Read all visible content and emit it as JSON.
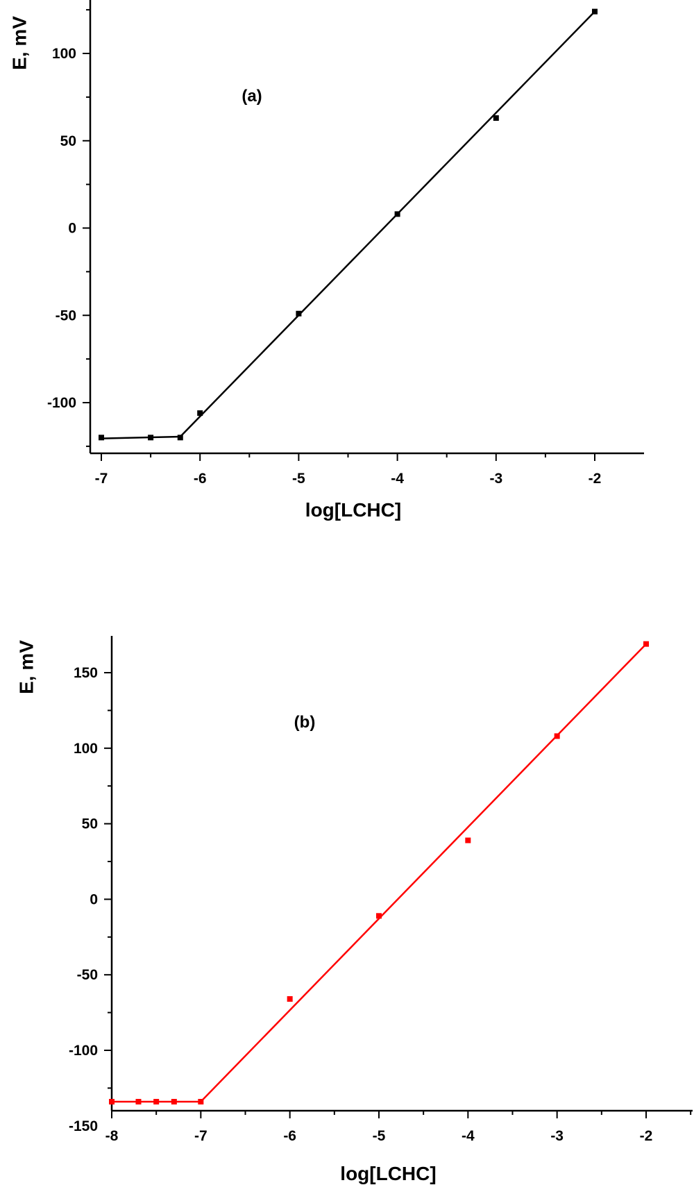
{
  "chart_data": [
    {
      "type": "scatter",
      "panel_label": "(a)",
      "xlabel": "log[LCHC]",
      "ylabel": "E, mV",
      "xlim": [
        -7,
        -1.5
      ],
      "ylim": [
        -125,
        125
      ],
      "xticks": [
        -7,
        -6,
        -5,
        -4,
        -3,
        -2
      ],
      "yticks": [
        -100,
        -50,
        0,
        50,
        100
      ],
      "color": "#000000",
      "x": [
        -7,
        -6.5,
        -6.2,
        -6,
        -5,
        -4,
        -3,
        -2
      ],
      "y": [
        -120,
        -120,
        -120,
        -106,
        -49,
        8,
        63,
        124
      ],
      "fit_line": {
        "x": [
          -7,
          -6.2,
          -2
        ],
        "y": [
          -120.5,
          -119.5,
          124
        ]
      },
      "grid": false,
      "legend": "none"
    },
    {
      "type": "scatter",
      "panel_label": "(b)",
      "xlabel": "log[LCHC]",
      "ylabel": "E, mV",
      "xlim": [
        -8,
        -1.5
      ],
      "ylim": [
        -150,
        175
      ],
      "xticks": [
        -8,
        -7,
        -6,
        -5,
        -4,
        -3,
        -2
      ],
      "yticks": [
        -150,
        -100,
        -50,
        0,
        50,
        100,
        150
      ],
      "color": "#ff0000",
      "x": [
        -8,
        -7.7,
        -7.5,
        -7.3,
        -7,
        -6,
        -5,
        -4,
        -3,
        -2
      ],
      "y": [
        -134,
        -134,
        -134,
        -134,
        -134,
        -66,
        -11,
        39,
        108,
        169
      ],
      "fit_line": {
        "x": [
          -8,
          -7,
          -2
        ],
        "y": [
          -134,
          -134,
          169
        ]
      },
      "grid": false,
      "legend": "none"
    }
  ]
}
